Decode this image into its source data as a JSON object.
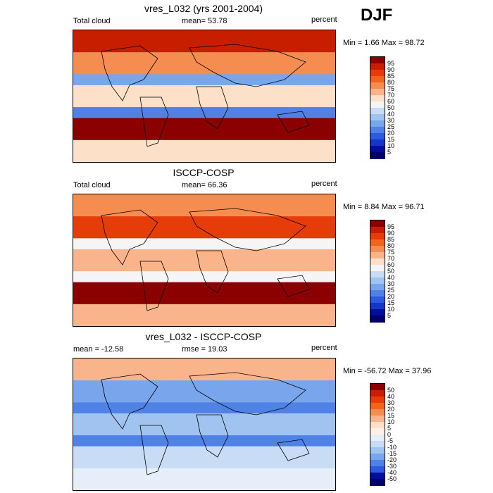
{
  "season": "DJF",
  "panels": [
    {
      "title": "vres_L032 (yrs 2001-2004)",
      "left_label": "Total cloud",
      "center_label": "mean=  53.78",
      "right_label": "percent",
      "minmax": "Min =   1.66 Max =  98.72"
    },
    {
      "title": "ISCCP-COSP",
      "left_label": "Total cloud",
      "center_label": "mean=  66.36",
      "right_label": "percent",
      "minmax": "Min =   8.84 Max =  96.71"
    },
    {
      "title": "vres_L032 - ISCCP-COSP",
      "left_label": "mean = -12.58",
      "center_label": "rmse =  19.03",
      "right_label": "percent",
      "minmax": "Min = -56.72 Max =  37.96"
    }
  ],
  "colorbars": [
    {
      "labels": [
        "95",
        "90",
        "85",
        "80",
        "75",
        "70",
        "60",
        "50",
        "40",
        "30",
        "25",
        "20",
        "15",
        "10",
        "5"
      ],
      "colors": [
        "#8b0000",
        "#c81e00",
        "#e63c0a",
        "#f0641e",
        "#f58c50",
        "#fab48c",
        "#fde0c8",
        "#f5f5f5",
        "#c8dcf5",
        "#a0c3f0",
        "#78a5eb",
        "#5082e6",
        "#2d5ae1",
        "#1437c8",
        "#000f9b",
        "#00006e"
      ]
    },
    {
      "labels": [
        "95",
        "90",
        "85",
        "80",
        "75",
        "70",
        "60",
        "50",
        "40",
        "30",
        "25",
        "20",
        "15",
        "10",
        "5"
      ],
      "colors": [
        "#8b0000",
        "#c81e00",
        "#e63c0a",
        "#f0641e",
        "#f58c50",
        "#fab48c",
        "#fde0c8",
        "#f5f5f5",
        "#c8dcf5",
        "#a0c3f0",
        "#78a5eb",
        "#5082e6",
        "#2d5ae1",
        "#1437c8",
        "#000f9b",
        "#00006e"
      ]
    },
    {
      "labels": [
        "50",
        "40",
        "30",
        "20",
        "15",
        "10",
        "5",
        "0",
        "-5",
        "-10",
        "-15",
        "-20",
        "-30",
        "-40",
        "-50"
      ],
      "colors": [
        "#8b0000",
        "#c81e00",
        "#e63c0a",
        "#f0641e",
        "#f58c50",
        "#fab48c",
        "#fde0c8",
        "#fff0e6",
        "#e6eefa",
        "#c8dcf5",
        "#a0c3f0",
        "#78a5eb",
        "#5082e6",
        "#2d5ae1",
        "#000f9b",
        "#00006e"
      ]
    }
  ],
  "chart_data": [
    {
      "type": "heatmap",
      "title": "vres_L032 (yrs 2001-2004)",
      "variable": "Total cloud",
      "units": "percent",
      "mean": 53.78,
      "min": 1.66,
      "max": 98.72,
      "levels": [
        5,
        10,
        15,
        20,
        25,
        30,
        40,
        50,
        60,
        70,
        75,
        80,
        85,
        90,
        95
      ],
      "pattern_rows": [
        {
          "lat_band": "60N-90N",
          "value": 90
        },
        {
          "lat_band": "30N-60N",
          "value": 75
        },
        {
          "lat_band": "15N-30N",
          "value": 25
        },
        {
          "lat_band": "15S-15N",
          "value": 60
        },
        {
          "lat_band": "30S-15S",
          "value": 20
        },
        {
          "lat_band": "60S-30S",
          "value": 95
        },
        {
          "lat_band": "90S-60S",
          "value": 60
        }
      ]
    },
    {
      "type": "heatmap",
      "title": "ISCCP-COSP",
      "variable": "Total cloud",
      "units": "percent",
      "mean": 66.36,
      "min": 8.84,
      "max": 96.71,
      "levels": [
        5,
        10,
        15,
        20,
        25,
        30,
        40,
        50,
        60,
        70,
        75,
        80,
        85,
        90,
        95
      ],
      "pattern_rows": [
        {
          "lat_band": "60N-90N",
          "value": 75
        },
        {
          "lat_band": "30N-60N",
          "value": 85
        },
        {
          "lat_band": "15N-30N",
          "value": 50
        },
        {
          "lat_band": "15S-15N",
          "value": 70
        },
        {
          "lat_band": "30S-15S",
          "value": 55
        },
        {
          "lat_band": "60S-30S",
          "value": 95
        },
        {
          "lat_band": "90S-60S",
          "value": 70
        }
      ]
    },
    {
      "type": "heatmap",
      "title": "vres_L032 - ISCCP-COSP",
      "units": "percent",
      "mean": -12.58,
      "rmse": 19.03,
      "min": -56.72,
      "max": 37.96,
      "levels": [
        -50,
        -40,
        -30,
        -20,
        -15,
        -10,
        -5,
        0,
        5,
        10,
        15,
        20,
        30,
        40,
        50
      ],
      "pattern_rows": [
        {
          "lat_band": "60N-90N",
          "value": 10
        },
        {
          "lat_band": "30N-60N",
          "value": -20
        },
        {
          "lat_band": "15N-30N",
          "value": -30
        },
        {
          "lat_band": "15S-15N",
          "value": -15
        },
        {
          "lat_band": "30S-15S",
          "value": -30
        },
        {
          "lat_band": "60S-30S",
          "value": -10
        },
        {
          "lat_band": "90S-60S",
          "value": -5
        }
      ]
    }
  ]
}
